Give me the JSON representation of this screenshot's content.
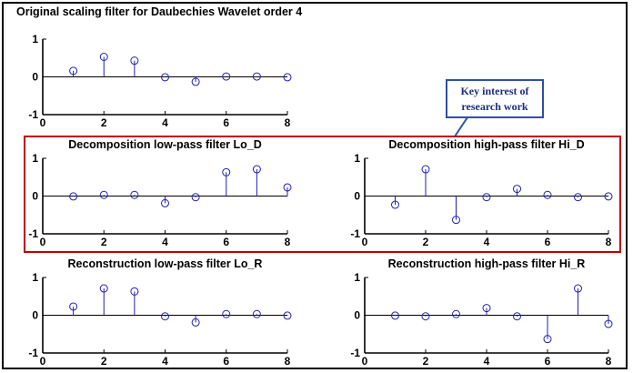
{
  "figure_title": "Original scaling filter for Daubechies Wavelet order 4",
  "callout": {
    "line1": "Key interest of",
    "line2": "research work"
  },
  "colors": {
    "stem": "#1f1fb4",
    "axis": "#000000",
    "highlight_box": "#c00000",
    "callout_border": "#2e4fa3",
    "callout_text": "#1a2e80"
  },
  "chart_data": [
    {
      "type": "stem",
      "title": "",
      "x": [
        1,
        2,
        3,
        4,
        5,
        6,
        7,
        8
      ],
      "values": [
        0.16,
        0.53,
        0.43,
        -0.01,
        -0.13,
        0.01,
        0.01,
        -0.01
      ],
      "xlim": [
        0,
        8
      ],
      "ylim": [
        -1,
        1
      ],
      "xticks": [
        "0",
        "2",
        "4",
        "6",
        "8"
      ],
      "yticks": [
        "1",
        "0",
        "-1"
      ]
    },
    {
      "type": "stem",
      "title": "Decomposition low-pass filter Lo_D",
      "x": [
        1,
        2,
        3,
        4,
        5,
        6,
        7,
        8
      ],
      "values": [
        -0.01,
        0.03,
        0.03,
        -0.19,
        -0.03,
        0.63,
        0.71,
        0.23
      ],
      "xlim": [
        0,
        8
      ],
      "ylim": [
        -1,
        1
      ],
      "xticks": [
        "0",
        "2",
        "4",
        "6",
        "8"
      ],
      "yticks": [
        "1",
        "0",
        "-1"
      ]
    },
    {
      "type": "stem",
      "title": "Decomposition high-pass filter Hi_D",
      "x": [
        1,
        2,
        3,
        4,
        5,
        6,
        7,
        8
      ],
      "values": [
        -0.23,
        0.71,
        -0.63,
        -0.03,
        0.19,
        0.03,
        -0.03,
        -0.01
      ],
      "xlim": [
        0,
        8
      ],
      "ylim": [
        -1,
        1
      ],
      "xticks": [
        "0",
        "2",
        "4",
        "6",
        "8"
      ],
      "yticks": [
        "1",
        "0",
        "-1"
      ]
    },
    {
      "type": "stem",
      "title": "Reconstruction low-pass filter Lo_R",
      "x": [
        1,
        2,
        3,
        4,
        5,
        6,
        7,
        8
      ],
      "values": [
        0.23,
        0.71,
        0.63,
        -0.03,
        -0.19,
        0.03,
        0.03,
        -0.01
      ],
      "xlim": [
        0,
        8
      ],
      "ylim": [
        -1,
        1
      ],
      "xticks": [
        "0",
        "2",
        "4",
        "6",
        "8"
      ],
      "yticks": [
        "1",
        "0",
        "-1"
      ]
    },
    {
      "type": "stem",
      "title": "Reconstruction high-pass filter Hi_R",
      "x": [
        1,
        2,
        3,
        4,
        5,
        6,
        7,
        8
      ],
      "values": [
        -0.01,
        -0.03,
        0.03,
        0.19,
        -0.03,
        -0.63,
        0.71,
        -0.23
      ],
      "xlim": [
        0,
        8
      ],
      "ylim": [
        -1,
        1
      ],
      "xticks": [
        "0",
        "2",
        "4",
        "6",
        "8"
      ],
      "yticks": [
        "1",
        "0",
        "-1"
      ]
    }
  ]
}
